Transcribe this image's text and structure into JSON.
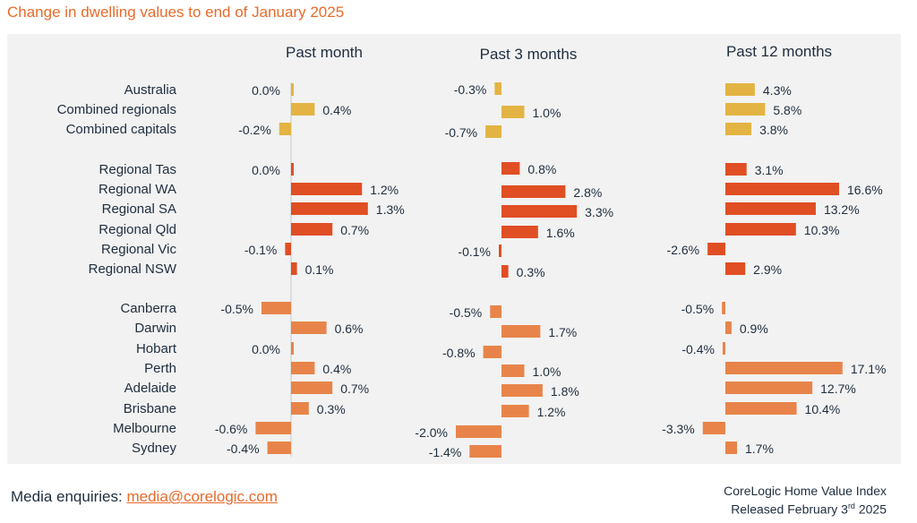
{
  "title": "Change in dwelling values to end of January 2025",
  "footer": {
    "media_label": "Media enquiries: ",
    "media_email": "media@corelogic.com",
    "index_name": "CoreLogic Home Value Index",
    "released_prefix": "Released February 3",
    "released_sup": "rd",
    "released_suffix": " 2025"
  },
  "colors": {
    "summary": "#e3b443",
    "regional": "#e04e24",
    "capitals": "#e8844a",
    "panel_bg": "#f2f2f2",
    "title": "#e86a2a"
  },
  "chart_data": {
    "type": "bar",
    "orientation": "horizontal",
    "categories": [
      "Australia",
      "Combined regionals",
      "Combined capitals",
      "Regional Tas",
      "Regional WA",
      "Regional SA",
      "Regional Qld",
      "Regional Vic",
      "Regional NSW",
      "Canberra",
      "Darwin",
      "Hobart",
      "Perth",
      "Adelaide",
      "Brisbane",
      "Melbourne",
      "Sydney"
    ],
    "groups": [
      "summary",
      "summary",
      "summary",
      "regional",
      "regional",
      "regional",
      "regional",
      "regional",
      "regional",
      "capitals",
      "capitals",
      "capitals",
      "capitals",
      "capitals",
      "capitals",
      "capitals",
      "capitals"
    ],
    "series": [
      {
        "name": "Past month",
        "values": [
          0.0,
          0.4,
          -0.2,
          0.0,
          1.2,
          1.3,
          0.7,
          -0.1,
          0.1,
          -0.5,
          0.6,
          0.0,
          0.4,
          0.7,
          0.3,
          -0.6,
          -0.4
        ],
        "labels": [
          "0.0%",
          "0.4%",
          "-0.2%",
          "0.0%",
          "1.2%",
          "1.3%",
          "0.7%",
          "-0.1%",
          "0.1%",
          "-0.5%",
          "0.6%",
          "0.0%",
          "0.4%",
          "0.7%",
          "0.3%",
          "-0.6%",
          "-0.4%"
        ]
      },
      {
        "name": "Past 3 months",
        "values": [
          -0.3,
          1.0,
          -0.7,
          0.8,
          2.8,
          3.3,
          1.6,
          -0.1,
          0.3,
          -0.5,
          1.7,
          -0.8,
          1.0,
          1.8,
          1.2,
          -2.0,
          -1.4
        ],
        "labels": [
          "-0.3%",
          "1.0%",
          "-0.7%",
          "0.8%",
          "2.8%",
          "3.3%",
          "1.6%",
          "-0.1%",
          "0.3%",
          "-0.5%",
          "1.7%",
          "-0.8%",
          "1.0%",
          "1.8%",
          "1.2%",
          "-2.0%",
          "-1.4%"
        ]
      },
      {
        "name": "Past 12 months",
        "values": [
          4.3,
          5.8,
          3.8,
          3.1,
          16.6,
          13.2,
          10.3,
          -2.6,
          2.9,
          -0.5,
          0.9,
          -0.4,
          17.1,
          12.7,
          10.4,
          -3.3,
          1.7
        ],
        "labels": [
          "4.3%",
          "5.8%",
          "3.8%",
          "3.1%",
          "16.6%",
          "13.2%",
          "10.3%",
          "-2.6%",
          "2.9%",
          "-0.5%",
          "0.9%",
          "-0.4%",
          "17.1%",
          "12.7%",
          "10.4%",
          "-3.3%",
          "1.7%"
        ]
      }
    ]
  }
}
